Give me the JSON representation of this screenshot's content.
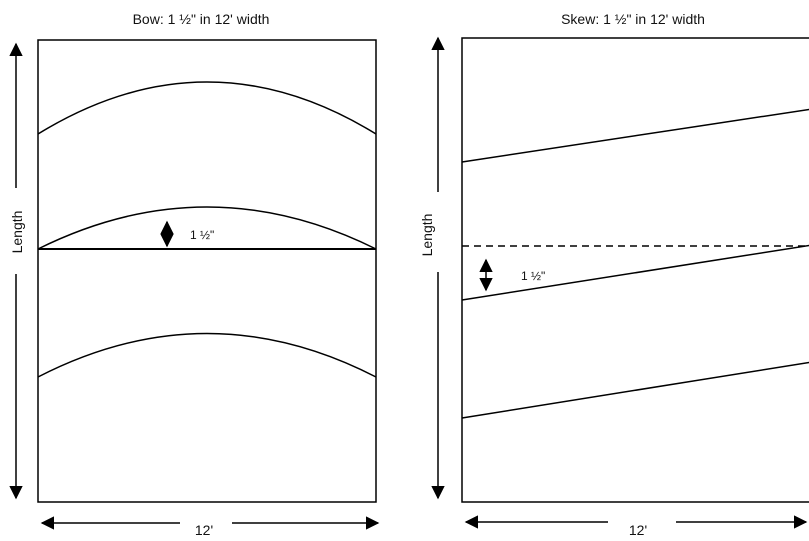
{
  "bow": {
    "title": "Bow:  1 ½\" in 12' width",
    "length_label": "Length",
    "width_label": "12'",
    "measure_label": "1 ½\""
  },
  "skew": {
    "title": "Skew:  1 ½\" in 12' width",
    "length_label": "Length",
    "width_label": "12'",
    "measure_label": "1 ½\""
  }
}
